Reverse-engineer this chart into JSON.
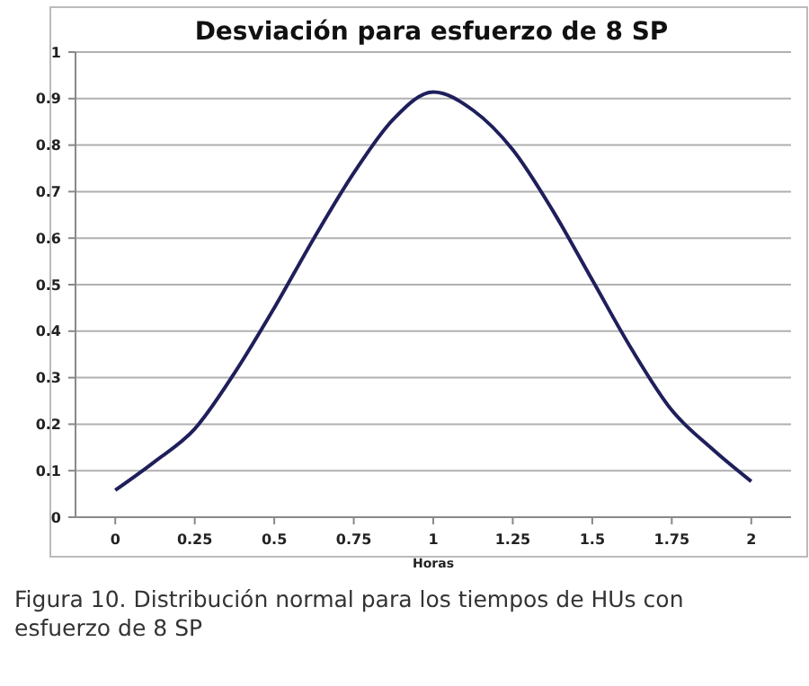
{
  "chart_data": {
    "type": "line",
    "title": "Desviación para esfuerzo de 8 SP",
    "xlabel": "Horas",
    "annotations": [
      "Figura 10. Distribución normal para los tiempos de HUs con esfuerzo de 8 SP"
    ],
    "x": [
      0,
      0.125,
      0.25,
      0.375,
      0.5,
      0.625,
      0.75,
      0.875,
      1,
      1.125,
      1.25,
      1.375,
      1.5,
      1.625,
      1.75,
      1.875,
      2
    ],
    "series": [
      {
        "color": "#1f1f5c",
        "values": [
          0.058,
          0.12,
          0.19,
          0.31,
          0.45,
          0.6,
          0.74,
          0.856,
          0.914,
          0.875,
          0.79,
          0.66,
          0.51,
          0.36,
          0.23,
          0.148,
          0.077
        ]
      }
    ],
    "xlim": [
      -0.125,
      2.125
    ],
    "xticks": [
      0,
      0.25,
      0.5,
      0.75,
      1,
      1.25,
      1.5,
      1.75,
      2
    ],
    "ylim": [
      0,
      1
    ],
    "yticks": [
      0,
      0.1,
      0.2,
      0.3,
      0.4,
      0.5,
      0.6,
      0.7,
      0.8,
      0.9,
      1
    ],
    "grid": "y",
    "marker": "none",
    "line_style": "solid"
  }
}
